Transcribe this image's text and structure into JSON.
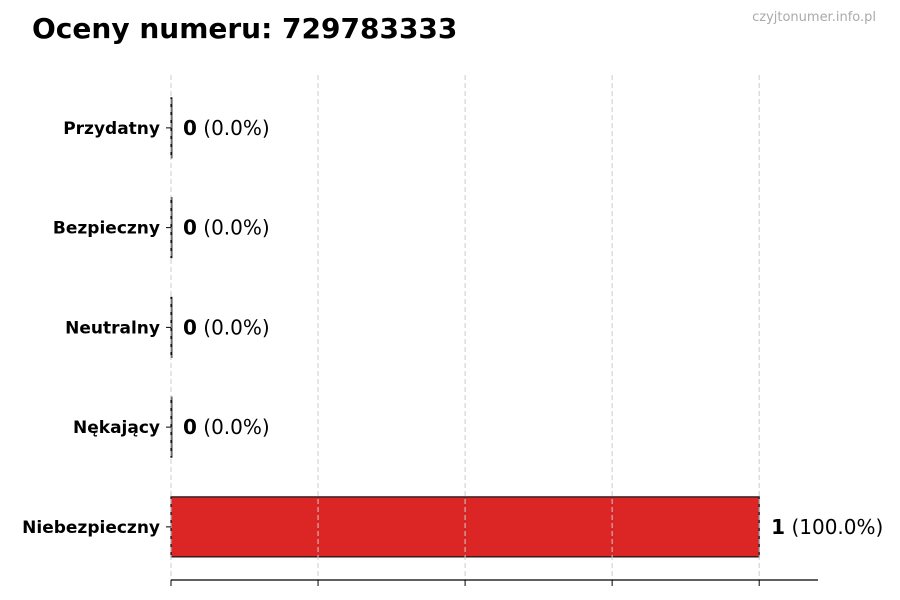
{
  "title": "Oceny numeru: 729783333",
  "watermark": "czyjtonumer.info.pl",
  "chart_data": {
    "type": "bar",
    "orientation": "horizontal",
    "title": "Oceny numeru: 729783333",
    "categories": [
      "Przydatny",
      "Bezpieczny",
      "Neutralny",
      "Nękający",
      "Niebezpieczny"
    ],
    "values": [
      0,
      0,
      0,
      0,
      1
    ],
    "labels": [
      "(0.0%)",
      "(0.0%)",
      "(0.0%)",
      "(0.0%)",
      "(100.0%)"
    ],
    "colors": [
      "#22c55e",
      "#3b82f6",
      "#9ca3af",
      "#f59e0b",
      "#dc2626"
    ],
    "xlim": [
      0,
      1.1
    ],
    "xticks": [
      0,
      0.25,
      0.5,
      0.75,
      1.0
    ],
    "xlabel": "",
    "ylabel": "",
    "grid": "x-dashed"
  }
}
